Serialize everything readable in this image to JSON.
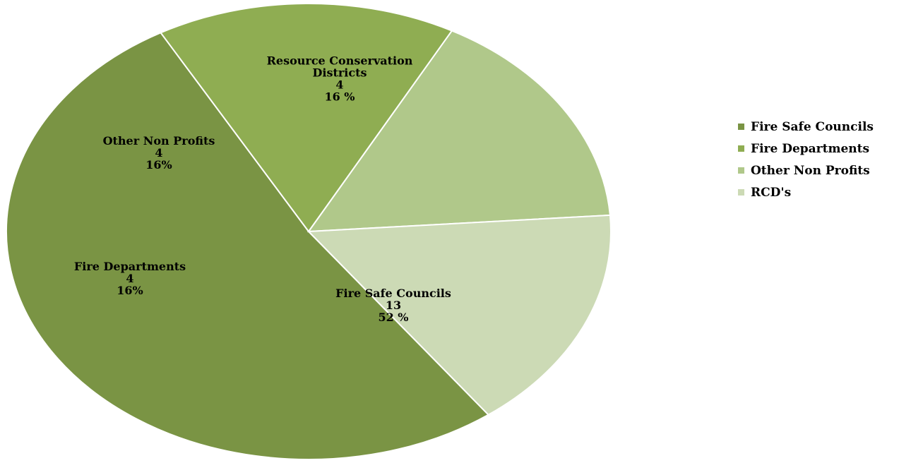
{
  "chart_data": {
    "type": "pie",
    "slices": [
      {
        "name": "Fire Safe Councils",
        "value": 13,
        "label_lines": [
          "Fire Safe Councils",
          "13",
          "52 %"
        ],
        "color": "#7a9444"
      },
      {
        "name": "Fire Departments",
        "value": 4,
        "label_lines": [
          "Fire Departments",
          "4",
          "16%"
        ],
        "color": "#8fad52"
      },
      {
        "name": "Other Non Profits",
        "value": 4,
        "label_lines": [
          "Other Non Profits",
          "4",
          "16%"
        ],
        "color": "#b0c88a"
      },
      {
        "name": "RCD's",
        "value": 4,
        "label_lines": [
          "Resource Conservation",
          "Districts",
          "4",
          "16 %"
        ],
        "color": "#ccdab5"
      }
    ],
    "legend": {
      "position": "right",
      "entries": [
        "Fire Safe Councils",
        "Fire Departments",
        "Other Non Profits",
        "RCD's"
      ]
    }
  }
}
